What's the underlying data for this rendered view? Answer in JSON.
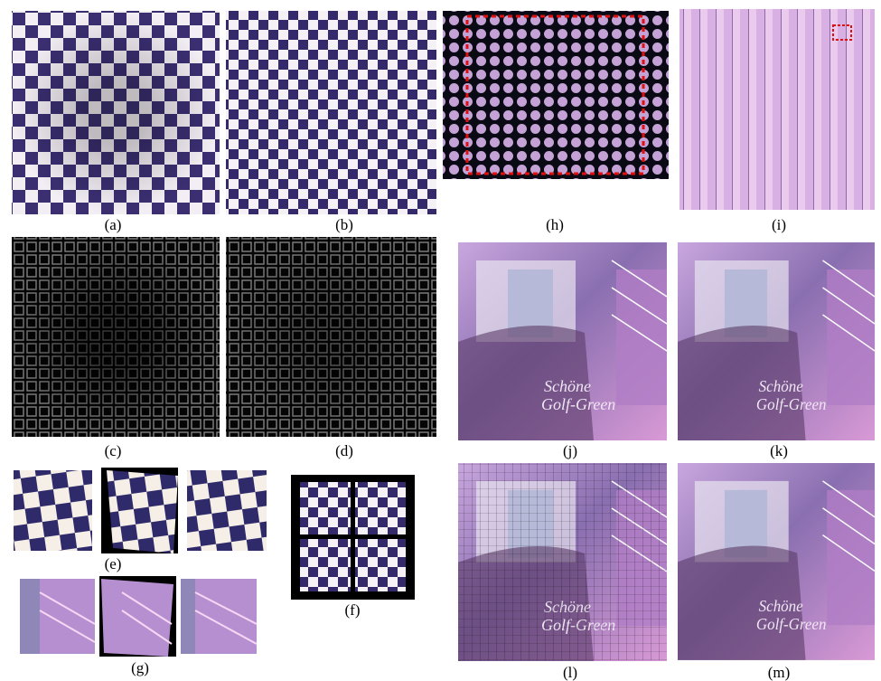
{
  "panels": [
    {
      "label": "(a)"
    },
    {
      "label": "(b)"
    },
    {
      "label": "(h)"
    },
    {
      "label": "(i)"
    },
    {
      "label": "(c)"
    },
    {
      "label": "(d)"
    },
    {
      "label": "(j)"
    },
    {
      "label": "(k)"
    },
    {
      "label": "(e)"
    },
    {
      "label": "(f)"
    },
    {
      "label": "(g)"
    },
    {
      "label": "(l)"
    },
    {
      "label": "(m)"
    }
  ]
}
